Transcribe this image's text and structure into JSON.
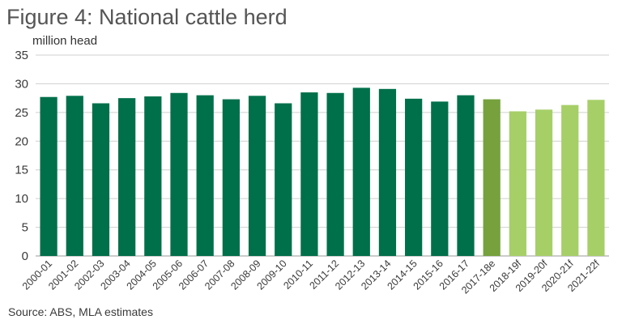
{
  "header": {
    "title": "Figure 4: National cattle herd",
    "source": "Source: ABS, MLA estimates"
  },
  "chart_data": {
    "type": "bar",
    "title": "Figure 4: National cattle herd",
    "xlabel": "",
    "ylabel": "million head",
    "ylim": [
      0,
      35
    ],
    "yticks": [
      0,
      5,
      10,
      15,
      20,
      25,
      30,
      35
    ],
    "grid": true,
    "categories": [
      "2000-01",
      "2001-02",
      "2002-03",
      "2003-04",
      "2004-05",
      "2005-06",
      "2006-07",
      "2007-08",
      "2008-09",
      "2009-10",
      "2010-11",
      "2011-12",
      "2012-13",
      "2013-14",
      "2014-15",
      "2015-16",
      "2016-17",
      "2017-18e",
      "2018-19f",
      "2019-20f",
      "2020-21f",
      "2021-22f"
    ],
    "values": [
      27.7,
      27.9,
      26.6,
      27.5,
      27.8,
      28.4,
      28.0,
      27.3,
      27.9,
      26.6,
      28.5,
      28.4,
      29.3,
      29.1,
      27.4,
      26.9,
      28.0,
      27.3,
      25.2,
      25.5,
      26.3,
      27.2
    ],
    "colors": {
      "actual": "#00704a",
      "estimate": "#76a13d",
      "forecast": "#a6cf68",
      "grid": "#cfcfcf"
    },
    "bar_color_groups": [
      "actual",
      "actual",
      "actual",
      "actual",
      "actual",
      "actual",
      "actual",
      "actual",
      "actual",
      "actual",
      "actual",
      "actual",
      "actual",
      "actual",
      "actual",
      "actual",
      "actual",
      "estimate",
      "forecast",
      "forecast",
      "forecast",
      "forecast"
    ]
  }
}
